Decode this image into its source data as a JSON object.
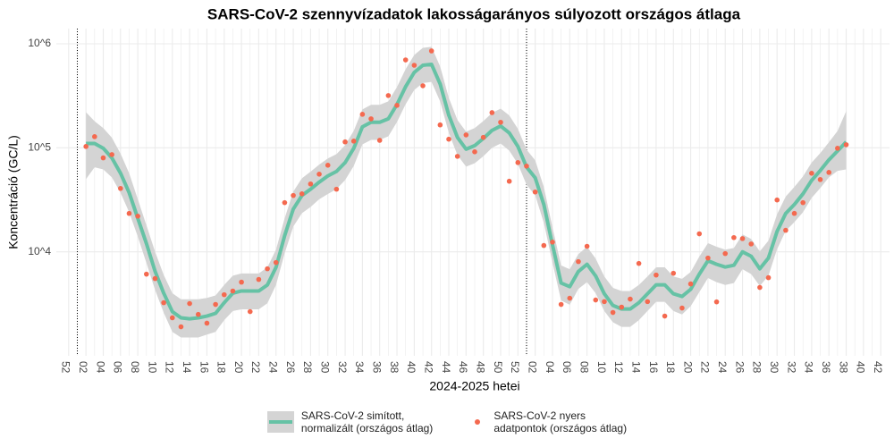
{
  "chart_data": {
    "type": "line",
    "title": "SARS-CoV-2 szennyvízadatok lakosságarányos súlyozott országos átlaga",
    "x_label": "2024-2025 hetei",
    "y_label": "Koncentráció (GC/L)",
    "log_scale": true,
    "grid": true,
    "legend_position": "bottom",
    "ylim": [
      1000,
      1400000
    ],
    "yticks": [
      {
        "value": 10000,
        "label": "10^4"
      },
      {
        "value": 100000,
        "label": "10^5"
      },
      {
        "value": 1000000,
        "label": "10^6"
      }
    ],
    "categories": [
      "52",
      null,
      "02",
      null,
      "04",
      null,
      "06",
      null,
      "08",
      null,
      "10",
      null,
      "12",
      null,
      "14",
      null,
      "16",
      null,
      "18",
      null,
      "20",
      null,
      "22",
      null,
      "24",
      null,
      "26",
      null,
      "28",
      null,
      "30",
      null,
      "32",
      null,
      "34",
      null,
      "36",
      null,
      "38",
      null,
      "40",
      null,
      "42",
      null,
      "44",
      null,
      "46",
      null,
      "48",
      null,
      "50",
      null,
      "52",
      null,
      "02",
      null,
      "04",
      null,
      "06",
      null,
      "08",
      null,
      "10",
      null,
      "12",
      null,
      "14",
      null,
      "16",
      null,
      "18",
      null,
      "20",
      null,
      "22",
      null,
      "24",
      null,
      "26",
      null,
      "28",
      null,
      "30",
      null,
      "32",
      null,
      "34",
      null,
      "36",
      null,
      "38",
      null,
      "40",
      null,
      "42"
    ],
    "series": [
      {
        "name": "SARS-CoV-2 simított,\n normalizált (országos átlag)",
        "color": "#66c2a5",
        "band_color": "#d4d4d4",
        "values": [
          null,
          null,
          110000,
          110000,
          99000,
          80000,
          57000,
          37000,
          21000,
          12000,
          6500,
          4000,
          2660,
          2320,
          2270,
          2320,
          2410,
          2560,
          3240,
          4000,
          4200,
          4200,
          4200,
          4800,
          7100,
          14300,
          25800,
          34800,
          40000,
          46800,
          53700,
          59300,
          72100,
          99000,
          159000,
          176000,
          176000,
          190000,
          261000,
          387000,
          531000,
          622000,
          635000,
          411000,
          206000,
          126000,
          97000,
          105000,
          123000,
          147000,
          162000,
          139000,
          103000,
          65300,
          51500,
          28500,
          11700,
          5010,
          4620,
          6470,
          7590,
          5860,
          3950,
          3050,
          2820,
          2820,
          3240,
          3950,
          4810,
          4810,
          3950,
          3720,
          4360,
          6100,
          8210,
          7590,
          7140,
          7430,
          10000,
          9060,
          6870,
          8710,
          15700,
          23400,
          28500,
          36100,
          48600,
          60400,
          76600,
          93300,
          114000,
          null,
          null,
          null,
          null
        ],
        "lower": [
          null,
          null,
          50000,
          65000,
          62000,
          52000,
          37000,
          24000,
          14000,
          7800,
          4300,
          2600,
          1700,
          1500,
          1500,
          1500,
          1600,
          1700,
          2200,
          2700,
          2800,
          2800,
          2800,
          3200,
          4800,
          9700,
          17500,
          23500,
          27000,
          32000,
          36000,
          40000,
          49000,
          67000,
          108000,
          119000,
          119000,
          129000,
          177000,
          262000,
          360000,
          420000,
          430000,
          279000,
          140000,
          85000,
          66000,
          71000,
          83000,
          100000,
          110000,
          94000,
          70000,
          44000,
          35000,
          19000,
          7900,
          3400,
          3100,
          4400,
          5100,
          4000,
          2700,
          2100,
          1900,
          1900,
          2200,
          2700,
          3300,
          3300,
          2700,
          2500,
          3000,
          4100,
          5600,
          5100,
          4800,
          5000,
          6800,
          6100,
          4700,
          5900,
          10600,
          15900,
          19300,
          24000,
          33000,
          41000,
          52000,
          60000,
          62000,
          null,
          null,
          null,
          null
        ],
        "upper": [
          null,
          null,
          220000,
          180000,
          155000,
          125000,
          88000,
          57000,
          32000,
          18000,
          10000,
          6000,
          4000,
          3500,
          3500,
          3500,
          3600,
          3800,
          4800,
          5900,
          6200,
          6200,
          6200,
          7100,
          10500,
          21000,
          38000,
          51000,
          59000,
          69000,
          79000,
          87000,
          106000,
          146000,
          234000,
          259000,
          259000,
          280000,
          384000,
          570000,
          780000,
          915000,
          935000,
          605000,
          303000,
          185000,
          143000,
          155000,
          181000,
          216000,
          238000,
          205000,
          152000,
          96000,
          76000,
          42000,
          17200,
          7400,
          6800,
          9500,
          11200,
          8600,
          5800,
          4500,
          4200,
          4200,
          4800,
          5800,
          7100,
          7100,
          5800,
          5500,
          6400,
          9000,
          12100,
          11200,
          10500,
          10900,
          14700,
          13300,
          10100,
          12800,
          23000,
          34000,
          42000,
          53000,
          72000,
          89000,
          113000,
          145000,
          225000,
          null,
          null,
          null,
          null
        ]
      },
      {
        "name": "SARS-CoV-2 nyers\n adatpontok (országos átlag)",
        "type": "scatter",
        "color": "#f4694f",
        "values": [
          null,
          null,
          103000,
          128000,
          80000,
          86000,
          40700,
          23400,
          22000,
          6100,
          5530,
          3240,
          2320,
          1900,
          3180,
          2500,
          2060,
          3120,
          3870,
          4200,
          5110,
          2660,
          5420,
          6870,
          7890,
          29700,
          34800,
          36100,
          44900,
          55800,
          68000,
          40000,
          114000,
          116000,
          210000,
          190000,
          118000,
          318000,
          256000,
          700000,
          622000,
          395000,
          854000,
          166000,
          121000,
          82800,
          133000,
          91500,
          126000,
          218000,
          176000,
          47700,
          72100,
          66700,
          37600,
          11500,
          12400,
          3120,
          3580,
          8050,
          11300,
          3440,
          3320,
          2610,
          2940,
          3510,
          7730,
          3320,
          5980,
          2410,
          6220,
          2880,
          4910,
          14900,
          8710,
          3300,
          9620,
          13700,
          13400,
          11900,
          4540,
          5640,
          31500,
          16100,
          23400,
          29700,
          56900,
          49500,
          58000,
          99000,
          107000,
          null,
          null,
          null,
          null
        ]
      }
    ]
  }
}
